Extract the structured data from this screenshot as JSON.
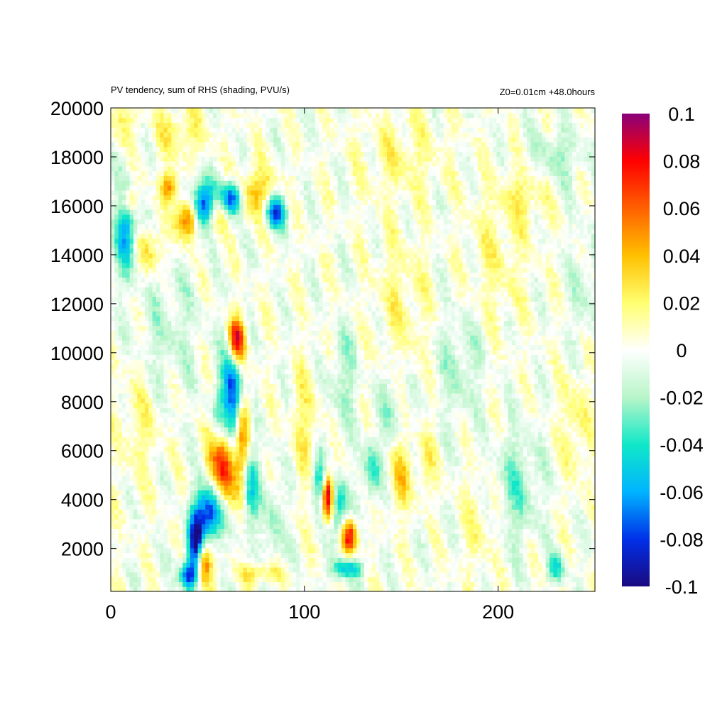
{
  "chart_data": {
    "type": "heatmap",
    "title": "PV tendency, sum of RHS (shading, PVU/s)",
    "subtitle": "Z0=0.01cm   +48.0hours",
    "xlabel": "",
    "ylabel": "",
    "xlim": [
      0,
      250
    ],
    "ylim": [
      250,
      20000
    ],
    "x_ticks": [
      "0",
      "100",
      "200"
    ],
    "y_ticks": [
      "2000",
      "4000",
      "6000",
      "8000",
      "10000",
      "12000",
      "14000",
      "16000",
      "18000",
      "20000"
    ],
    "colorbar": {
      "range": [
        -0.1,
        0.1
      ],
      "ticks": [
        "0.1",
        "0.08",
        "0.06",
        "0.04",
        "0.02",
        "0",
        "-0.02",
        "-0.04",
        "-0.06",
        "-0.08",
        "-0.1"
      ],
      "colors": [
        "#1a0a80",
        "#0030e8",
        "#00b4ff",
        "#10e8c8",
        "#b8f5c8",
        "#ffffff",
        "#ffff70",
        "#ffc000",
        "#ff6000",
        "#ff0000",
        "#8a007a"
      ]
    },
    "features": [
      {
        "x": 48,
        "y": 16000,
        "value": -0.1,
        "sx": 5,
        "sy": 700
      },
      {
        "x": 62,
        "y": 16300,
        "value": -0.1,
        "sx": 4,
        "sy": 500
      },
      {
        "x": 40,
        "y": 15500,
        "value": 0.08,
        "sx": 4,
        "sy": 600
      },
      {
        "x": 55,
        "y": 15800,
        "value": 0.06,
        "sx": 4,
        "sy": 600
      },
      {
        "x": 85,
        "y": 15800,
        "value": -0.08,
        "sx": 4,
        "sy": 500
      },
      {
        "x": 75,
        "y": 16500,
        "value": 0.04,
        "sx": 8,
        "sy": 700
      },
      {
        "x": 30,
        "y": 16800,
        "value": 0.05,
        "sx": 3,
        "sy": 400
      },
      {
        "x": 8,
        "y": 15000,
        "value": -0.06,
        "sx": 4,
        "sy": 1200
      },
      {
        "x": 20,
        "y": 14200,
        "value": 0.03,
        "sx": 5,
        "sy": 700
      },
      {
        "x": 10,
        "y": 16200,
        "value": 0.04,
        "sx": 3,
        "sy": 400
      },
      {
        "x": 65,
        "y": 10500,
        "value": 0.1,
        "sx": 3,
        "sy": 700
      },
      {
        "x": 63,
        "y": 8000,
        "value": -0.1,
        "sx": 4,
        "sy": 1600
      },
      {
        "x": 58,
        "y": 5500,
        "value": 0.1,
        "sx": 5,
        "sy": 1400
      },
      {
        "x": 52,
        "y": 3500,
        "value": -0.1,
        "sx": 5,
        "sy": 900
      },
      {
        "x": 44,
        "y": 2200,
        "value": -0.1,
        "sx": 3,
        "sy": 900
      },
      {
        "x": 48,
        "y": 1500,
        "value": 0.08,
        "sx": 3,
        "sy": 700
      },
      {
        "x": 40,
        "y": 900,
        "value": -0.08,
        "sx": 3,
        "sy": 400
      },
      {
        "x": 68,
        "y": 6800,
        "value": 0.06,
        "sx": 3,
        "sy": 1500
      },
      {
        "x": 55,
        "y": 7000,
        "value": -0.04,
        "sx": 3,
        "sy": 1000
      },
      {
        "x": 72,
        "y": 4500,
        "value": -0.05,
        "sx": 3,
        "sy": 1200
      },
      {
        "x": 112,
        "y": 4200,
        "value": 0.1,
        "sx": 2,
        "sy": 700
      },
      {
        "x": 108,
        "y": 4800,
        "value": -0.05,
        "sx": 3,
        "sy": 700
      },
      {
        "x": 123,
        "y": 2500,
        "value": 0.08,
        "sx": 3,
        "sy": 500
      },
      {
        "x": 118,
        "y": 3600,
        "value": -0.05,
        "sx": 3,
        "sy": 900
      },
      {
        "x": 122,
        "y": 1200,
        "value": -0.05,
        "sx": 6,
        "sy": 300
      },
      {
        "x": 135,
        "y": 5200,
        "value": -0.04,
        "sx": 3,
        "sy": 900
      },
      {
        "x": 150,
        "y": 5000,
        "value": 0.03,
        "sx": 4,
        "sy": 1000
      },
      {
        "x": 163,
        "y": 5500,
        "value": 0.02,
        "sx": 3,
        "sy": 900
      },
      {
        "x": 210,
        "y": 4500,
        "value": -0.025,
        "sx": 8,
        "sy": 1500
      },
      {
        "x": 230,
        "y": 1200,
        "value": -0.04,
        "sx": 3,
        "sy": 400
      },
      {
        "x": 78,
        "y": 1000,
        "value": 0.03,
        "sx": 8,
        "sy": 300
      },
      {
        "x": 85,
        "y": 3000,
        "value": -0.02,
        "sx": 4,
        "sy": 1500
      },
      {
        "x": 100,
        "y": 7000,
        "value": 0.02,
        "sx": 5,
        "sy": 1800
      },
      {
        "x": 120,
        "y": 9000,
        "value": -0.02,
        "sx": 5,
        "sy": 1500
      },
      {
        "x": 150,
        "y": 12000,
        "value": 0.015,
        "sx": 10,
        "sy": 2000
      },
      {
        "x": 180,
        "y": 9500,
        "value": -0.018,
        "sx": 8,
        "sy": 1500
      },
      {
        "x": 200,
        "y": 14000,
        "value": 0.015,
        "sx": 10,
        "sy": 2000
      },
      {
        "x": 215,
        "y": 16500,
        "value": 0.02,
        "sx": 8,
        "sy": 800
      },
      {
        "x": 230,
        "y": 18000,
        "value": -0.02,
        "sx": 10,
        "sy": 800
      },
      {
        "x": 150,
        "y": 18000,
        "value": 0.015,
        "sx": 15,
        "sy": 1200
      },
      {
        "x": 15,
        "y": 7000,
        "value": 0.015,
        "sx": 8,
        "sy": 1500
      },
      {
        "x": 30,
        "y": 11000,
        "value": -0.015,
        "sx": 10,
        "sy": 2000
      },
      {
        "x": 35,
        "y": 19000,
        "value": 0.02,
        "sx": 10,
        "sy": 800
      },
      {
        "x": 5,
        "y": 19500,
        "value": 0.02,
        "sx": 5,
        "sy": 600
      },
      {
        "x": 145,
        "y": 8000,
        "value": -0.018,
        "sx": 5,
        "sy": 1200
      },
      {
        "x": 240,
        "y": 7000,
        "value": 0.02,
        "sx": 5,
        "sy": 1500
      },
      {
        "x": 190,
        "y": 3000,
        "value": 0.015,
        "sx": 6,
        "sy": 1200
      },
      {
        "x": 245,
        "y": 12500,
        "value": -0.015,
        "sx": 5,
        "sy": 1500
      }
    ]
  }
}
